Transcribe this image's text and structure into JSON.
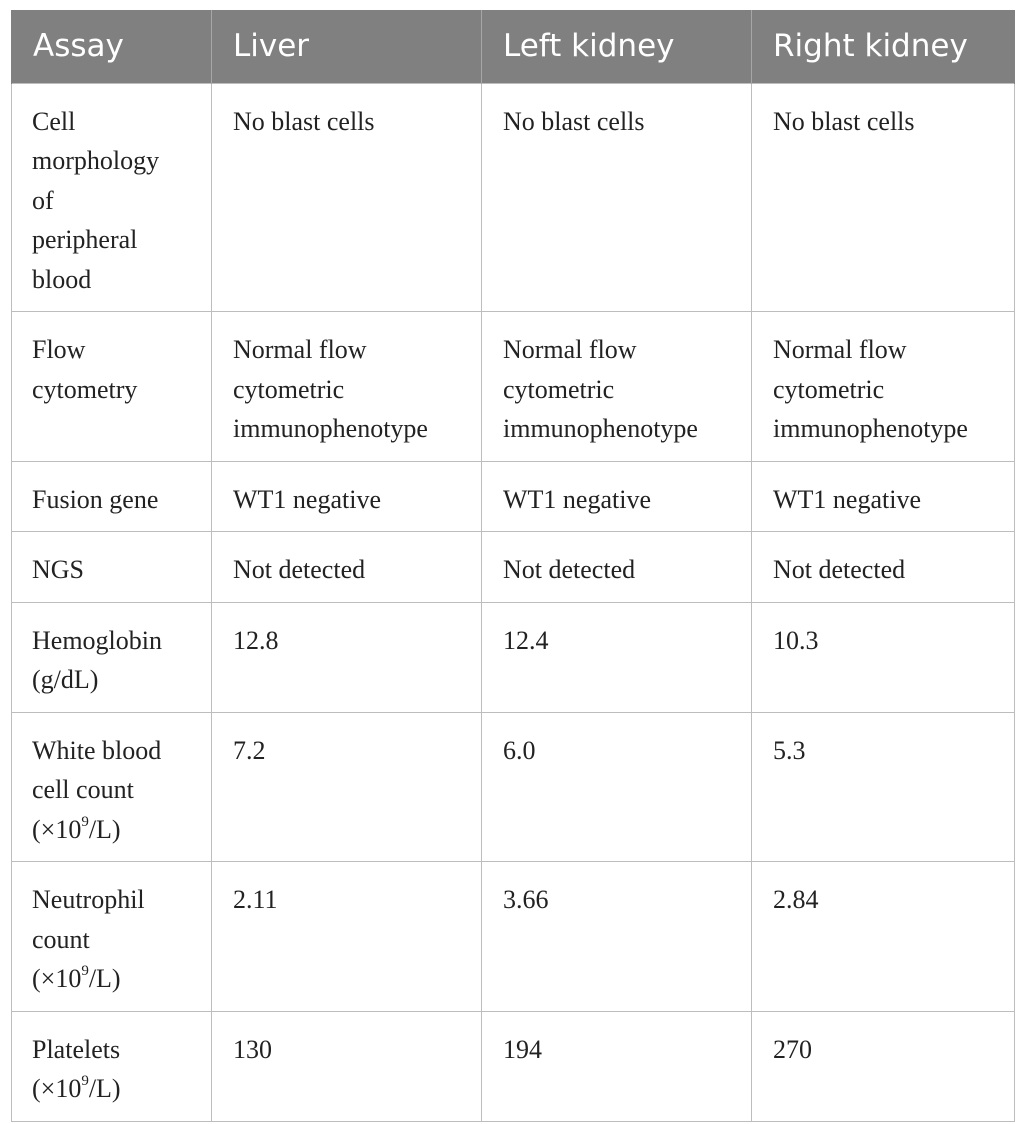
{
  "table": {
    "headers": [
      "Assay",
      "Liver",
      "Left kidney",
      "Right kidney"
    ],
    "rows": [
      {
        "assay": "Cell\nmorphology\nof\nperipheral\nblood",
        "liver": "No blast cells",
        "left_kidney": "No blast cells",
        "right_kidney": "No blast cells"
      },
      {
        "assay": "Flow\ncytometry",
        "liver": "Normal flow\ncytometric\nimmunophenotype",
        "left_kidney": "Normal flow\ncytometric\nimmunophenotype",
        "right_kidney": "Normal flow\ncytometric\nimmunophenotype"
      },
      {
        "assay": "Fusion gene",
        "liver": "WT1 negative",
        "left_kidney": "WT1 negative",
        "right_kidney": "WT1 negative"
      },
      {
        "assay": "NGS",
        "liver": "Not detected",
        "left_kidney": "Not detected",
        "right_kidney": "Not detected"
      },
      {
        "assay": "Hemoglobin\n(g/dL)",
        "liver": "12.8",
        "left_kidney": "12.4",
        "right_kidney": "10.3"
      },
      {
        "assay_main": "White blood\ncell count",
        "assay_unit_prefix": "(×10",
        "assay_unit_exp": "9",
        "assay_unit_suffix": "/L)",
        "liver": "7.2",
        "left_kidney": "6.0",
        "right_kidney": "5.3"
      },
      {
        "assay_main": "Neutrophil\ncount",
        "assay_unit_prefix": "(×10",
        "assay_unit_exp": "9",
        "assay_unit_suffix": "/L)",
        "liver": "2.11",
        "left_kidney": "3.66",
        "right_kidney": "2.84"
      },
      {
        "assay_main": "Platelets",
        "assay_unit_prefix": "(×10",
        "assay_unit_exp": "9",
        "assay_unit_suffix": "/L)",
        "liver": "130",
        "left_kidney": "194",
        "right_kidney": "270"
      }
    ]
  }
}
